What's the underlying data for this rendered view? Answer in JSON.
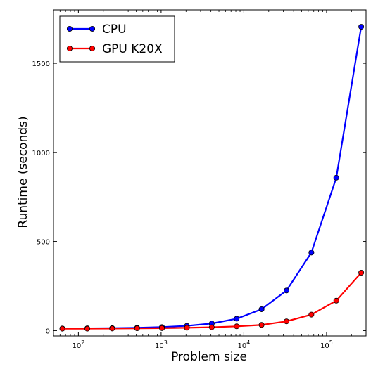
{
  "chart_data": {
    "type": "line",
    "title": "",
    "xlabel": "Problem size",
    "ylabel": "Runtime (seconds)",
    "xscale": "log",
    "xlim": [
      50,
      300000
    ],
    "ylim": [
      -30,
      1800
    ],
    "grid": false,
    "legend_position": "top-left",
    "x_ticks": [
      {
        "value": 100,
        "base": "10",
        "exp": "2"
      },
      {
        "value": 1000,
        "base": "10",
        "exp": "3"
      },
      {
        "value": 10000,
        "base": "10",
        "exp": "4"
      },
      {
        "value": 100000,
        "base": "10",
        "exp": "5"
      }
    ],
    "y_ticks": [
      {
        "value": 0,
        "label": "0"
      },
      {
        "value": 500,
        "label": "500"
      },
      {
        "value": 1000,
        "label": "1000"
      },
      {
        "value": 1500,
        "label": "1500"
      }
    ],
    "x": [
      64,
      128,
      256,
      512,
      1024,
      2048,
      4096,
      8192,
      16384,
      32768,
      65536,
      131072,
      262144
    ],
    "series": [
      {
        "name": "CPU",
        "color": "#0000ff",
        "values": [
          12,
          13,
          14,
          16,
          20,
          27,
          40,
          67,
          120,
          225,
          438,
          858,
          1705
        ]
      },
      {
        "name": "GPU K20X",
        "color": "#ff0000",
        "values": [
          11,
          11,
          12,
          13,
          14,
          16,
          19,
          24,
          32,
          52,
          90,
          168,
          325
        ]
      }
    ]
  }
}
